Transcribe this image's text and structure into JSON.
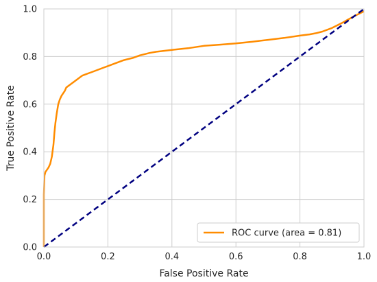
{
  "chart_data": {
    "type": "line",
    "xlabel": "False Positive Rate",
    "ylabel": "True Positive Rate",
    "xlim": [
      0.0,
      1.0
    ],
    "ylim": [
      0.0,
      1.0
    ],
    "xticks": [
      "0.0",
      "0.2",
      "0.4",
      "0.6",
      "0.8",
      "1.0"
    ],
    "yticks": [
      "0.0",
      "0.2",
      "0.4",
      "0.6",
      "0.8",
      "1.0"
    ],
    "grid": true,
    "legend_position": "lower-right",
    "series": [
      {
        "name": "ROC curve (area = 0.81)",
        "color": "#ff8c00",
        "style": "solid",
        "x": [
          0.0,
          0.0,
          0.002,
          0.005,
          0.01,
          0.015,
          0.02,
          0.025,
          0.03,
          0.033,
          0.036,
          0.04,
          0.045,
          0.05,
          0.055,
          0.06,
          0.065,
          0.07,
          0.08,
          0.09,
          0.1,
          0.11,
          0.115,
          0.12,
          0.13,
          0.15,
          0.17,
          0.19,
          0.2,
          0.22,
          0.25,
          0.28,
          0.3,
          0.33,
          0.35,
          0.4,
          0.45,
          0.5,
          0.55,
          0.6,
          0.65,
          0.7,
          0.75,
          0.8,
          0.83,
          0.85,
          0.87,
          0.9,
          0.93,
          0.95,
          0.97,
          1.0
        ],
        "y": [
          0.0,
          0.22,
          0.3,
          0.315,
          0.325,
          0.335,
          0.35,
          0.38,
          0.43,
          0.48,
          0.52,
          0.56,
          0.6,
          0.62,
          0.635,
          0.645,
          0.655,
          0.67,
          0.68,
          0.69,
          0.7,
          0.71,
          0.715,
          0.72,
          0.725,
          0.735,
          0.745,
          0.755,
          0.76,
          0.77,
          0.785,
          0.795,
          0.805,
          0.815,
          0.82,
          0.828,
          0.835,
          0.845,
          0.85,
          0.855,
          0.862,
          0.87,
          0.878,
          0.888,
          0.893,
          0.898,
          0.905,
          0.92,
          0.94,
          0.955,
          0.97,
          0.99
        ]
      },
      {
        "name": "",
        "color": "#000080",
        "style": "dashed",
        "x": [
          0.0,
          1.0
        ],
        "y": [
          0.0,
          1.0
        ]
      }
    ]
  }
}
